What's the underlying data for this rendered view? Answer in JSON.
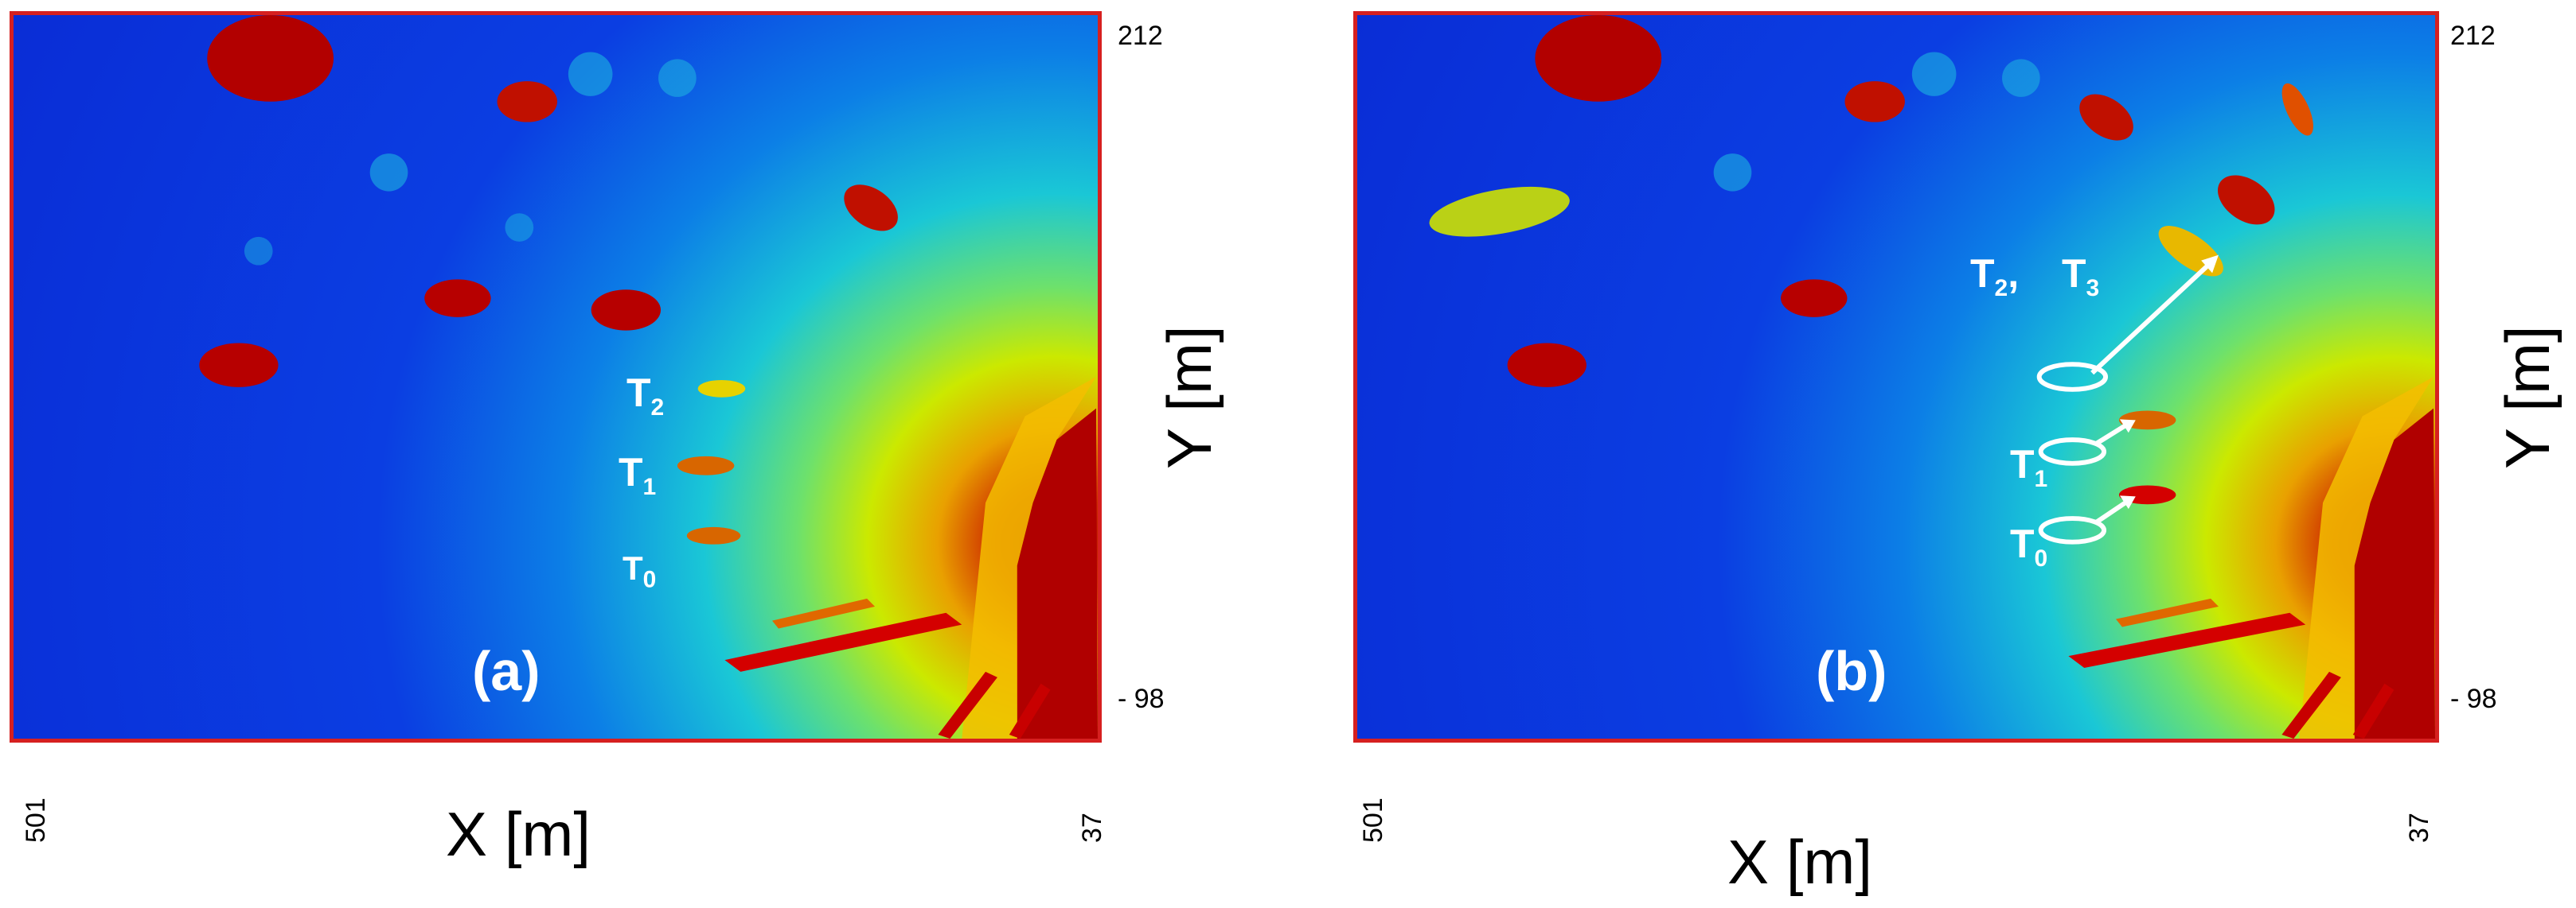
{
  "panels": [
    {
      "id": "a",
      "label": "(a)",
      "x_axis_label": "X [m]",
      "y_axis_label": "Y [m]",
      "x_tick_left": "501",
      "x_tick_right": "37",
      "y_tick_top": "212",
      "y_tick_bottom": "- 98",
      "targets": [
        {
          "base": "T",
          "sub": "2"
        },
        {
          "base": "T",
          "sub": "1"
        },
        {
          "base": "T",
          "sub": "0"
        }
      ]
    },
    {
      "id": "b",
      "label": "(b)",
      "x_axis_label": "X [m]",
      "y_axis_label": "Y [m]",
      "x_tick_left": "501",
      "x_tick_right": "37",
      "y_tick_top": "212",
      "y_tick_bottom": "- 98",
      "targets": [
        {
          "base": "T",
          "sub": "2",
          "suffix": ",",
          "extra_base": "T",
          "extra_sub": "3"
        },
        {
          "base": "T",
          "sub": "1"
        },
        {
          "base": "T",
          "sub": "0"
        }
      ]
    }
  ],
  "colors": {
    "frame": "#d62020",
    "background_low": "#0a2dd6",
    "mid": "#1ac7d6",
    "high": "#e9a000",
    "peak": "#b10000",
    "annotation": "#ffffff"
  }
}
